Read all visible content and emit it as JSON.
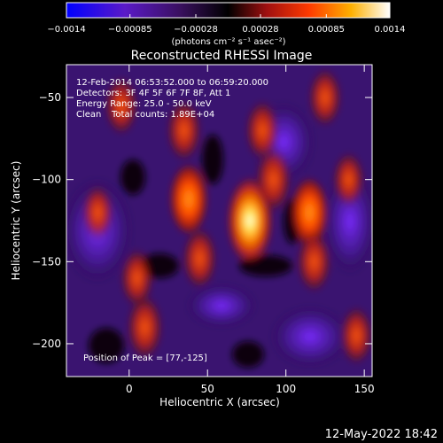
{
  "colorbar": {
    "ticks": [
      "−0.0014",
      "−0.00085",
      "−0.00028",
      "0.00028",
      "0.00085",
      "0.0014"
    ],
    "tick_values": [
      -0.0014,
      -0.00085,
      -0.00028,
      0.00028,
      0.00085,
      0.0014
    ],
    "range": [
      -0.0014,
      0.0014
    ],
    "unit_label": "(photons cm⁻² s⁻¹ asec⁻²)"
  },
  "annotations": {
    "time_range": "12-Feb-2014 06:53:52.000 to 06:59:20.000",
    "detectors": "Detectors: 3F 4F 5F 6F 7F 8F, Att 1",
    "energy_range": "Energy Range: 25.0 - 50.0 keV",
    "algorithm": "Clean",
    "total_counts": "Total counts: 1.89E+04",
    "peak": "Position of Peak = [77,-125]"
  },
  "footer_timestamp": "12-May-2022 18:42",
  "chart_data": {
    "type": "heatmap",
    "title": "Reconstructed RHESSI Image",
    "xlabel": "Heliocentric X (arcsec)",
    "ylabel": "Heliocentric Y (arcsec)",
    "xlim": [
      -40,
      155
    ],
    "ylim": [
      -220,
      -30
    ],
    "xticks": [
      0,
      50,
      100,
      150
    ],
    "yticks": [
      -50,
      -100,
      -150,
      -200
    ],
    "xtick_labels": [
      "0",
      "50",
      "100",
      "150"
    ],
    "ytick_labels": [
      "−50",
      "−100",
      "−150",
      "−200"
    ],
    "colormap": "blue-purple-black-red-orange-yellow-white",
    "peak_position": [
      77,
      -125
    ],
    "sources": [
      {
        "x": 77,
        "y": -125,
        "value": 0.0014
      },
      {
        "x": 38,
        "y": -112,
        "value": 0.0009
      },
      {
        "x": 45,
        "y": -148,
        "value": 0.0006
      },
      {
        "x": 115,
        "y": -120,
        "value": 0.00085
      },
      {
        "x": 118,
        "y": -150,
        "value": 0.0006
      },
      {
        "x": 92,
        "y": -100,
        "value": 0.0007
      },
      {
        "x": 85,
        "y": -70,
        "value": 0.00055
      },
      {
        "x": 35,
        "y": -70,
        "value": 0.0006
      },
      {
        "x": 125,
        "y": -50,
        "value": 0.0005
      },
      {
        "x": -5,
        "y": -55,
        "value": 0.0005
      },
      {
        "x": 10,
        "y": -190,
        "value": 0.0007
      },
      {
        "x": 5,
        "y": -160,
        "value": 0.0005
      },
      {
        "x": -20,
        "y": -120,
        "value": 0.0004
      },
      {
        "x": 140,
        "y": -100,
        "value": 0.0004
      },
      {
        "x": 145,
        "y": -195,
        "value": 0.0005
      }
    ]
  }
}
